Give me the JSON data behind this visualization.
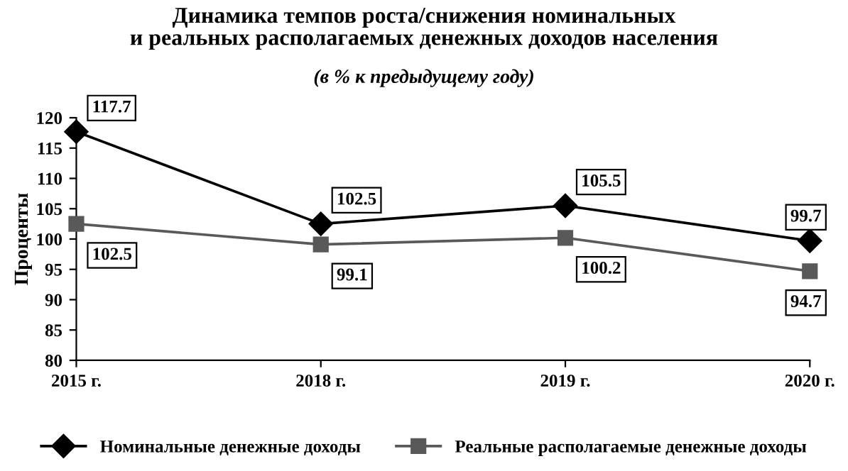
{
  "chart_data": {
    "type": "line",
    "title": "Динамика темпов роста/снижения номинальных\nи реальных располагаемых денежных доходов населения",
    "subtitle": "(в % к предыдущему году)",
    "ylabel": "Проценты",
    "categories": [
      "2015 г.",
      "2018 г.",
      "2019 г.",
      "2020 г."
    ],
    "series": [
      {
        "name": "Номинальные денежные доходы",
        "color": "#000000",
        "marker": "diamond",
        "values": [
          117.7,
          102.5,
          105.5,
          99.7
        ]
      },
      {
        "name": "Реальные располагаемые денежные доходы",
        "color": "#595959",
        "marker": "square",
        "values": [
          102.5,
          99.1,
          100.2,
          94.7
        ]
      }
    ],
    "ylim": [
      80,
      120
    ],
    "yticks": [
      80,
      85,
      90,
      95,
      100,
      105,
      110,
      115,
      120
    ],
    "grid": false,
    "legend": "bottom",
    "data_labels": true,
    "line_style": "solid"
  }
}
